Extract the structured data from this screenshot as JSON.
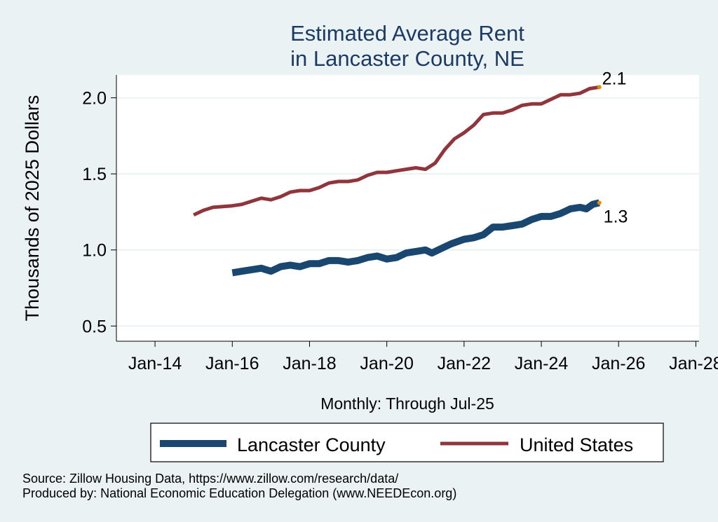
{
  "chart_data": {
    "type": "line",
    "title": [
      "Estimated Average Rent",
      "in Lancaster County, NE"
    ],
    "xlabel": "Monthly: Through Jul-25",
    "ylabel": "Thousands of 2025 Dollars",
    "ylim": [
      0.4,
      2.15
    ],
    "yticks": [
      0.5,
      1.0,
      1.5,
      2.0
    ],
    "ytick_labels": [
      "0.5",
      "1.0",
      "1.5",
      "2.0"
    ],
    "xlim": [
      "2013-01",
      "2028-02"
    ],
    "xticks": [
      "2014-01",
      "2016-01",
      "2018-01",
      "2020-01",
      "2022-01",
      "2024-01",
      "2026-01",
      "2028-01"
    ],
    "xtick_labels": [
      "Jan-14",
      "Jan-16",
      "Jan-18",
      "Jan-20",
      "Jan-22",
      "Jan-24",
      "Jan-26",
      "Jan-28"
    ],
    "grid": "horizontal",
    "legend_position": "bottom",
    "series": [
      {
        "name": "Lancaster County",
        "color": "#1a476f",
        "end_label": "1.3",
        "points": [
          [
            "2016-01",
            0.85
          ],
          [
            "2016-07",
            0.87
          ],
          [
            "2016-10",
            0.88
          ],
          [
            "2017-01",
            0.86
          ],
          [
            "2017-04",
            0.89
          ],
          [
            "2017-07",
            0.9
          ],
          [
            "2017-10",
            0.89
          ],
          [
            "2018-01",
            0.91
          ],
          [
            "2018-04",
            0.91
          ],
          [
            "2018-07",
            0.93
          ],
          [
            "2018-10",
            0.93
          ],
          [
            "2019-01",
            0.92
          ],
          [
            "2019-04",
            0.93
          ],
          [
            "2019-07",
            0.95
          ],
          [
            "2019-10",
            0.96
          ],
          [
            "2020-01",
            0.94
          ],
          [
            "2020-04",
            0.95
          ],
          [
            "2020-07",
            0.98
          ],
          [
            "2020-10",
            0.99
          ],
          [
            "2021-01",
            1.0
          ],
          [
            "2021-03",
            0.98
          ],
          [
            "2021-06",
            1.01
          ],
          [
            "2021-09",
            1.04
          ],
          [
            "2022-01",
            1.07
          ],
          [
            "2022-04",
            1.08
          ],
          [
            "2022-07",
            1.1
          ],
          [
            "2022-10",
            1.15
          ],
          [
            "2023-01",
            1.15
          ],
          [
            "2023-04",
            1.16
          ],
          [
            "2023-07",
            1.17
          ],
          [
            "2023-10",
            1.2
          ],
          [
            "2024-01",
            1.22
          ],
          [
            "2024-04",
            1.22
          ],
          [
            "2024-07",
            1.24
          ],
          [
            "2024-10",
            1.27
          ],
          [
            "2025-01",
            1.28
          ],
          [
            "2025-03",
            1.27
          ],
          [
            "2025-05",
            1.3
          ],
          [
            "2025-07",
            1.31
          ]
        ]
      },
      {
        "name": "United States",
        "color": "#90353b",
        "end_label": "2.1",
        "points": [
          [
            "2015-01",
            1.23
          ],
          [
            "2015-04",
            1.26
          ],
          [
            "2015-07",
            1.28
          ],
          [
            "2016-01",
            1.29
          ],
          [
            "2016-04",
            1.3
          ],
          [
            "2016-07",
            1.32
          ],
          [
            "2016-10",
            1.34
          ],
          [
            "2017-01",
            1.33
          ],
          [
            "2017-04",
            1.35
          ],
          [
            "2017-07",
            1.38
          ],
          [
            "2017-10",
            1.39
          ],
          [
            "2018-01",
            1.39
          ],
          [
            "2018-04",
            1.41
          ],
          [
            "2018-07",
            1.44
          ],
          [
            "2018-10",
            1.45
          ],
          [
            "2019-01",
            1.45
          ],
          [
            "2019-04",
            1.46
          ],
          [
            "2019-07",
            1.49
          ],
          [
            "2019-10",
            1.51
          ],
          [
            "2020-01",
            1.51
          ],
          [
            "2020-04",
            1.52
          ],
          [
            "2020-07",
            1.53
          ],
          [
            "2020-10",
            1.54
          ],
          [
            "2021-01",
            1.53
          ],
          [
            "2021-04",
            1.57
          ],
          [
            "2021-07",
            1.66
          ],
          [
            "2021-10",
            1.73
          ],
          [
            "2022-01",
            1.77
          ],
          [
            "2022-04",
            1.82
          ],
          [
            "2022-07",
            1.89
          ],
          [
            "2022-10",
            1.9
          ],
          [
            "2023-01",
            1.9
          ],
          [
            "2023-04",
            1.92
          ],
          [
            "2023-07",
            1.95
          ],
          [
            "2023-10",
            1.96
          ],
          [
            "2024-01",
            1.96
          ],
          [
            "2024-04",
            1.99
          ],
          [
            "2024-07",
            2.02
          ],
          [
            "2024-10",
            2.02
          ],
          [
            "2025-01",
            2.03
          ],
          [
            "2025-04",
            2.06
          ],
          [
            "2025-07",
            2.07
          ]
        ]
      }
    ],
    "endpoint_marker_color": "#e08a00",
    "legend": [
      "Lancaster County",
      "United States"
    ],
    "source_lines": [
      "Source: Zillow Housing Data, https://www.zillow.com/research/data/",
      "Produced by: National Economic Education Delegation (www.NEEDEcon.org)"
    ]
  }
}
